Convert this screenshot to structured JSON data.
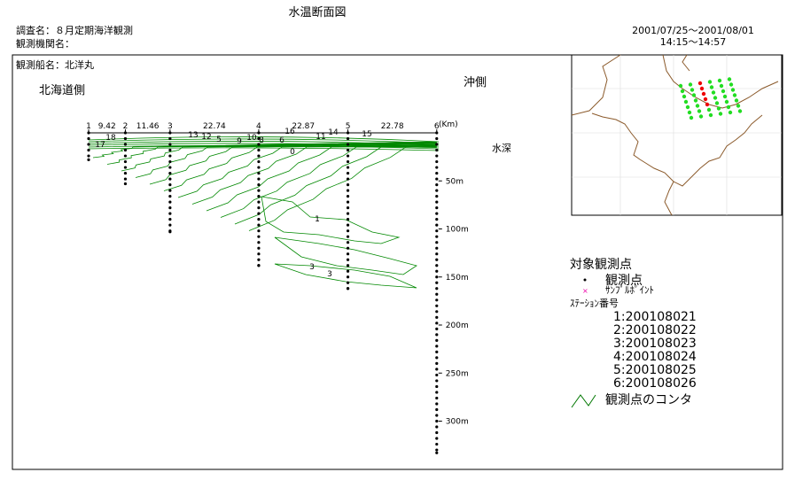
{
  "header": {
    "title": "水温断面図",
    "survey": "調査名：８月定期海洋観測",
    "agency": "観測機関名：",
    "period": "2001/07/25～2001/08/01",
    "time": "14:15～14:57"
  },
  "ship": "観測船名：北洋丸",
  "section": {
    "left_side": "北海道側",
    "right_side": "沖側",
    "depth_label": "水深",
    "distance_unit": "(Km)",
    "stations": [
      {
        "label": "1",
        "bottom": 28
      },
      {
        "label": "2",
        "bottom": 53
      },
      {
        "label": "3",
        "bottom": 103
      },
      {
        "label": "4",
        "bottom": 138
      },
      {
        "label": "5",
        "bottom": 162
      },
      {
        "label": "6",
        "bottom": 333
      }
    ],
    "segments": [
      "9.42",
      "11.46",
      "22.74",
      "22.87",
      "22.78"
    ],
    "dot_interval": 6,
    "ylim": [
      0,
      333
    ],
    "yticks": [
      {
        "value": 50,
        "label": "50m"
      },
      {
        "value": 100,
        "label": "100m"
      },
      {
        "value": 150,
        "label": "150m"
      },
      {
        "value": 200,
        "label": "200m"
      },
      {
        "value": 250,
        "label": "250m"
      },
      {
        "value": 300,
        "label": "300m"
      }
    ],
    "contour_labels": [
      17,
      18,
      13,
      12,
      5,
      9,
      10,
      8,
      6,
      16,
      11,
      14,
      15,
      0,
      1,
      3,
      3
    ]
  },
  "legend": {
    "title": "対象観測点",
    "point": "観測点",
    "sample": "ｻﾝﾌﾟﾙﾎﾟｲﾝﾄ",
    "station_title": "ｽﾃｰｼｮﾝ番号",
    "stations": [
      "1:200108021",
      "2:200108022",
      "3:200108023",
      "4:200108024",
      "5:200108025",
      "6:200108026"
    ],
    "contour": "観測点のコンタ"
  }
}
